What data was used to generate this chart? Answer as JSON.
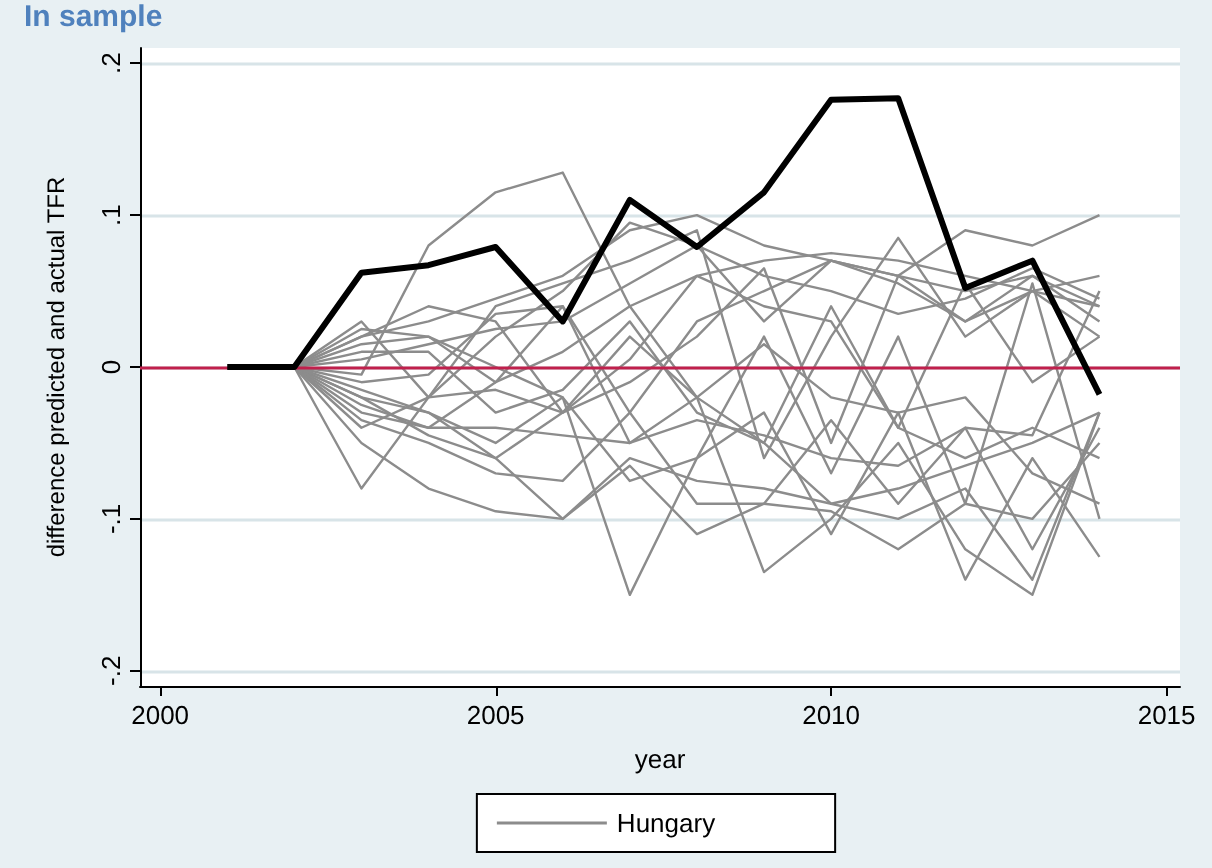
{
  "chart_data": {
    "type": "line",
    "title": "In sample",
    "xlabel": "year",
    "ylabel": "difference predicted and actual TFR",
    "x": [
      2002,
      2003,
      2004,
      2005,
      2006,
      2007,
      2008,
      2009,
      2010,
      2011,
      2012,
      2013,
      2014
    ],
    "series": [
      {
        "color": "#8c8c8c",
        "name": "Hungary",
        "values": [
          0,
          -0.005,
          0.08,
          0.115,
          0.128,
          0.04,
          -0.02,
          -0.05,
          -0.09,
          -0.1,
          -0.08,
          -0.14,
          -0.03
        ]
      },
      {
        "color": "#8c8c8c",
        "values": [
          0,
          0.02,
          0.03,
          0.045,
          0.06,
          0.09,
          0.1,
          0.08,
          0.07,
          0.06,
          0.05,
          0.06,
          0.04
        ]
      },
      {
        "color": "#8c8c8c",
        "values": [
          0,
          -0.04,
          -0.02,
          0.02,
          0.05,
          0.095,
          0.08,
          0.03,
          0.07,
          0.06,
          0.09,
          0.08,
          0.1
        ]
      },
      {
        "color": "#8c8c8c",
        "values": [
          0,
          -0.02,
          -0.045,
          -0.06,
          -0.03,
          0.02,
          -0.02,
          -0.135,
          -0.1,
          -0.05,
          -0.12,
          -0.15,
          -0.03
        ]
      },
      {
        "color": "#8c8c8c",
        "values": [
          0,
          0.025,
          0.02,
          0,
          -0.02,
          -0.15,
          -0.06,
          -0.03,
          -0.11,
          -0.03,
          -0.14,
          -0.06,
          -0.125
        ]
      },
      {
        "color": "#8c8c8c",
        "values": [
          0,
          -0.02,
          -0.03,
          -0.06,
          -0.1,
          -0.065,
          -0.11,
          -0.09,
          -0.035,
          -0.09,
          -0.04,
          -0.12,
          -0.04
        ]
      },
      {
        "color": "#8c8c8c",
        "values": [
          0,
          -0.05,
          -0.08,
          -0.095,
          -0.1,
          -0.06,
          -0.075,
          -0.08,
          -0.09,
          -0.08,
          -0.065,
          -0.05,
          -0.03
        ]
      },
      {
        "color": "#8c8c8c",
        "values": [
          0,
          -0.03,
          -0.04,
          -0.01,
          0.01,
          0.04,
          0.06,
          0.07,
          0.075,
          0.07,
          0.06,
          0.05,
          0.04
        ]
      },
      {
        "color": "#8c8c8c",
        "values": [
          0,
          0.015,
          0.02,
          -0.01,
          0.04,
          -0.03,
          0.03,
          0.05,
          0.07,
          0.055,
          0.03,
          0.06,
          0.03
        ]
      },
      {
        "color": "#8c8c8c",
        "values": [
          0,
          -0.08,
          -0.02,
          -0.015,
          -0.03,
          -0.01,
          0.02,
          0.065,
          -0.05,
          0.06,
          0.03,
          0.05,
          0.06
        ]
      },
      {
        "color": "#8c8c8c",
        "values": [
          0,
          0.03,
          -0.02,
          0.04,
          0.055,
          0.07,
          0.09,
          -0.06,
          0.02,
          0.085,
          0.02,
          0.05,
          0.02
        ]
      },
      {
        "color": "#8c8c8c",
        "values": [
          0,
          -0.01,
          -0.005,
          0.035,
          0.04,
          -0.05,
          -0.02,
          0.015,
          -0.02,
          -0.03,
          -0.02,
          -0.07,
          -0.09
        ]
      },
      {
        "color": "#8c8c8c",
        "values": [
          0,
          -0.035,
          -0.05,
          -0.07,
          -0.075,
          -0.03,
          -0.09,
          -0.09,
          -0.095,
          -0.12,
          -0.09,
          -0.1,
          -0.05
        ]
      },
      {
        "color": "#8c8c8c",
        "values": [
          0,
          0.01,
          0.01,
          -0.03,
          -0.015,
          0.03,
          -0.03,
          -0.05,
          0.04,
          -0.04,
          -0.06,
          -0.04,
          -0.06
        ]
      },
      {
        "color": "#8c8c8c",
        "values": [
          0,
          -0.025,
          -0.04,
          -0.04,
          -0.045,
          -0.05,
          -0.035,
          -0.045,
          -0.06,
          -0.065,
          -0.04,
          -0.045,
          0.05
        ]
      },
      {
        "color": "#8c8c8c",
        "values": [
          0,
          0.005,
          0.015,
          0.025,
          0.03,
          0.055,
          0.08,
          0.06,
          0.05,
          0.035,
          0.045,
          0.065,
          0.045
        ]
      },
      {
        "color": "#8c8c8c",
        "values": [
          0,
          -0.015,
          -0.03,
          -0.05,
          -0.02,
          -0.075,
          -0.06,
          0.02,
          -0.07,
          0.02,
          -0.09,
          0.055,
          -0.1
        ]
      },
      {
        "color": "#8c8c8c",
        "values": [
          0,
          0.02,
          0.04,
          0.03,
          -0.03,
          0.005,
          0.06,
          0.04,
          0.03,
          -0.04,
          0.055,
          -0.01,
          0.02
        ]
      },
      {
        "color": "#000000",
        "x": [
          2001,
          2002,
          2003,
          2004,
          2005,
          2006,
          2007,
          2008,
          2009,
          2010,
          2011,
          2012,
          2013,
          2014
        ],
        "values": [
          0,
          0,
          0.062,
          0.067,
          0.079,
          0.03,
          0.11,
          0.079,
          0.115,
          0.176,
          0.177,
          0.052,
          0.07,
          -0.018
        ]
      }
    ],
    "xlim": [
      1999.7,
      2015.2
    ],
    "xticks": [
      2000,
      2005,
      2010,
      2015
    ],
    "ylim": [
      -0.21,
      0.21
    ],
    "yticks": [
      {
        "value": -0.2,
        "label": "-.2"
      },
      {
        "value": -0.1,
        "label": "-.1"
      },
      0,
      {
        "value": 0.1,
        "label": ".1"
      },
      {
        "value": 0.2,
        "label": ".2"
      }
    ],
    "ref_lines": [
      {
        "axis": "y",
        "value": 0,
        "color": "#c0204c"
      }
    ],
    "grid": "y",
    "legend": "bottom",
    "marker": "none",
    "line_style": "solid"
  }
}
